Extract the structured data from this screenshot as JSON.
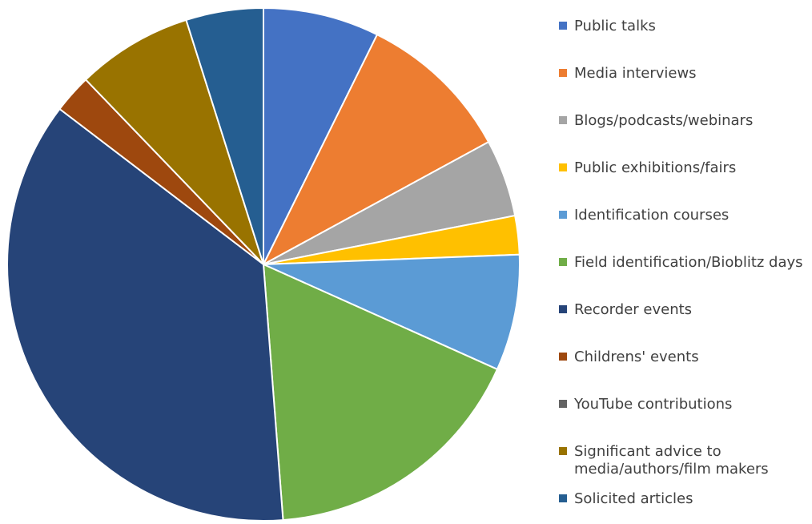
{
  "chart_data": {
    "type": "pie",
    "title": "",
    "legend_position": "right",
    "slices": [
      {
        "label": "Public talks",
        "value": 7.5,
        "color": "#4472c4"
      },
      {
        "label": "Media interviews",
        "value": 10.0,
        "color": "#ed7d31"
      },
      {
        "label": "Blogs/podcasts/webinars",
        "value": 5.0,
        "color": "#a5a5a5"
      },
      {
        "label": "Public exhibitions/fairs",
        "value": 2.5,
        "color": "#ffc000"
      },
      {
        "label": "Identification courses",
        "value": 7.5,
        "color": "#5b9bd5"
      },
      {
        "label": "Field identification/Bioblitz days",
        "value": 17.5,
        "color": "#70ad47"
      },
      {
        "label": "Recorder events",
        "value": 37.5,
        "color": "#264478"
      },
      {
        "label": "Childrens' events",
        "value": 2.5,
        "color": "#9e480e"
      },
      {
        "label": "YouTube contributions",
        "value": 0,
        "color": "#636363"
      },
      {
        "label": "Significant advice to media/authors/film makers",
        "value": 7.5,
        "color": "#997300",
        "label_lines": [
          "Significant advice to",
          "media/authors/film makers"
        ]
      },
      {
        "label": "Solicited articles",
        "value": 5.0,
        "color": "#255e91"
      }
    ]
  }
}
